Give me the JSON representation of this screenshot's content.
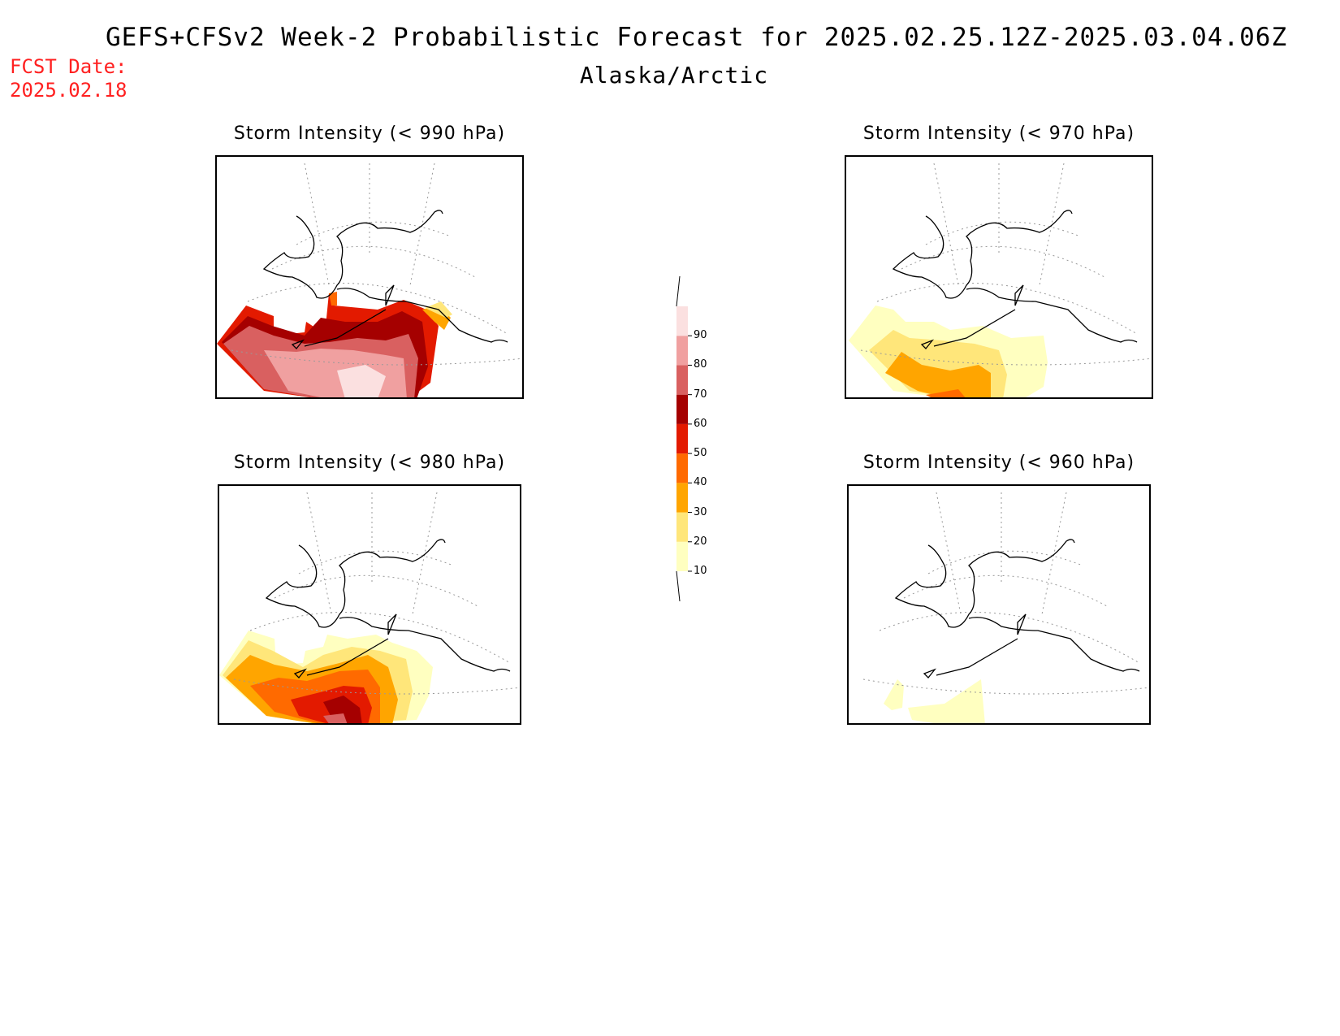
{
  "header": {
    "title": "GEFS+CFSv2 Week-2 Probabilistic Forecast for 2025.02.25.12Z-2025.03.04.06Z",
    "subtitle": "Alaska/Arctic",
    "fcst_label": "FCST Date:",
    "fcst_date": "2025.02.18"
  },
  "panels": [
    {
      "title": "Storm Intensity (< 990 hPa)",
      "max_probability": 90
    },
    {
      "title": "Storm Intensity (< 970 hPa)",
      "max_probability": 50
    },
    {
      "title": "Storm Intensity (< 980 hPa)",
      "max_probability": 70
    },
    {
      "title": "Storm Intensity (< 960 hPa)",
      "max_probability": 20
    }
  ],
  "colorbar": {
    "levels": [
      "10",
      "20",
      "30",
      "40",
      "50",
      "60",
      "70",
      "80",
      "90"
    ],
    "colors": [
      "#ffffc0",
      "#ffe67a",
      "#ffa500",
      "#ff6a00",
      "#e31a00",
      "#a50000",
      "#d96060",
      "#f0a0a0",
      "#fbe0e0"
    ]
  }
}
